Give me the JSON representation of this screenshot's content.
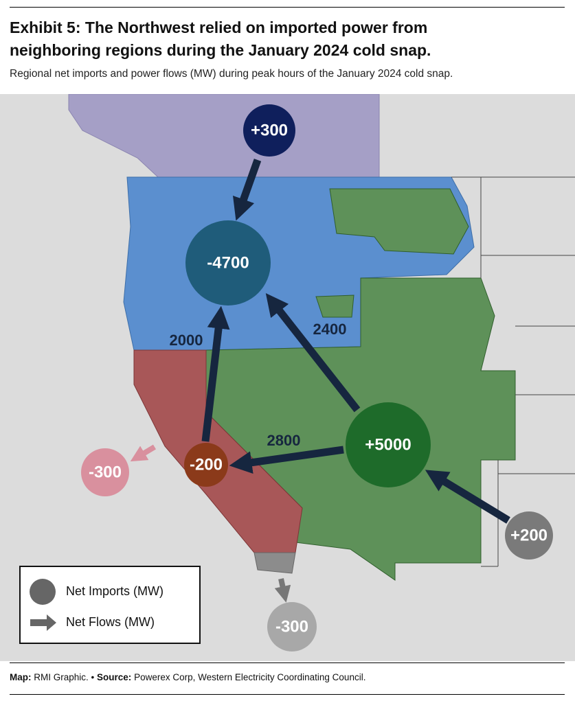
{
  "header": {
    "title_lines": [
      "Exhibit 5: The Northwest relied on imported power from",
      "neighboring regions during the January 2024 cold snap."
    ],
    "subtitle": "Regional net imports and power flows (MW) during peak hours of the January 2024 cold snap."
  },
  "nodes": [
    {
      "label": "+300"
    },
    {
      "label": "-4700"
    },
    {
      "label": "-200"
    },
    {
      "label": "+5000"
    },
    {
      "label": "-300"
    },
    {
      "label": "+200"
    },
    {
      "label": "-300"
    }
  ],
  "flows": [
    {
      "label": "2000"
    },
    {
      "label": "2400"
    },
    {
      "label": "2800"
    }
  ],
  "legend": {
    "items": [
      {
        "label": "Net Imports (MW)"
      },
      {
        "label": "Net Flows (MW)"
      }
    ]
  },
  "footer": {
    "map_key": "Map:",
    "map_text": "RMI Graphic. •",
    "source_key": "Source:",
    "source_text": "Powerex Corp, Western Electricity Coordinating Council."
  }
}
